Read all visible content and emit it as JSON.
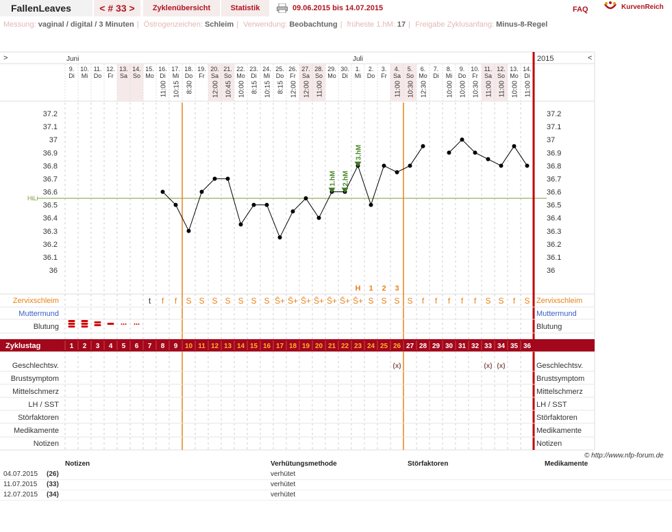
{
  "header": {
    "username": "FallenLeaves",
    "cycle_nav": "< # 33 >",
    "tabs": [
      "Zyklenübersicht",
      "Statistik"
    ],
    "date_range": "09.06.2015 bis 14.07.2015",
    "faq": "FAQ",
    "logo_text": "KurvenReich"
  },
  "info": [
    {
      "label": "Messung:",
      "value": "vaginal / digital / 3 Minuten"
    },
    {
      "label": "Östrogenzeichen:",
      "value": "Schleim"
    },
    {
      "label": "Verwendung:",
      "value": "Beobachtung"
    },
    {
      "label": "früheste 1.hM:",
      "value": "17"
    },
    {
      "label": "Freigabe Zyklusanfang:",
      "value": "Minus-8-Regel"
    }
  ],
  "chart_data": {
    "type": "line",
    "year": "2015",
    "nav_left": ">",
    "nav_right": "<",
    "months": [
      {
        "day_index": 0,
        "label": "Juni"
      },
      {
        "day_index": 22,
        "label": "Juli"
      }
    ],
    "dates": [
      "9.",
      "10.",
      "11.",
      "12.",
      "13.",
      "14.",
      "15.",
      "16.",
      "17.",
      "18.",
      "19.",
      "20.",
      "21.",
      "22.",
      "23.",
      "24.",
      "25.",
      "26.",
      "27.",
      "28.",
      "29.",
      "30.",
      "1.",
      "2.",
      "3.",
      "4.",
      "5.",
      "6.",
      "7.",
      "8.",
      "9.",
      "10.",
      "11.",
      "12.",
      "13.",
      "14."
    ],
    "weekdays": [
      "Di",
      "Mi",
      "Do",
      "Fr",
      "Sa",
      "So",
      "Mo",
      "Di",
      "Mi",
      "Do",
      "Fr",
      "Sa",
      "So",
      "Mo",
      "Di",
      "Mi",
      "Do",
      "Fr",
      "Sa",
      "So",
      "Mo",
      "Di",
      "Mi",
      "Do",
      "Fr",
      "Sa",
      "So",
      "Mo",
      "Di",
      "Mi",
      "Do",
      "Fr",
      "Sa",
      "So",
      "Mo",
      "Di"
    ],
    "weekend_days": [
      4,
      5,
      11,
      12,
      18,
      19,
      25,
      26,
      32,
      33
    ],
    "times": [
      "",
      "",
      "",
      "",
      "",
      "",
      "",
      "11:00",
      "10:15",
      "8:30",
      "",
      "12:00",
      "10:45",
      "10:00",
      "8:15",
      "10:15",
      "8:15",
      "12:00",
      "12:00",
      "11:00",
      "",
      "",
      "",
      "",
      "",
      "11:00",
      "10:30",
      "12:30",
      "",
      "10:00",
      "10:00",
      "10:30",
      "11:00",
      "11:00",
      "10:00",
      "11:00"
    ],
    "cycle_days": [
      "1",
      "2",
      "3",
      "4",
      "5",
      "6",
      "7",
      "8",
      "9",
      "10",
      "11",
      "12",
      "13",
      "14",
      "15",
      "16",
      "17",
      "18",
      "19",
      "20",
      "21",
      "22",
      "23",
      "24",
      "25",
      "26",
      "27",
      "28",
      "29",
      "30",
      "31",
      "32",
      "33",
      "34",
      "35",
      "36"
    ],
    "temperatures": [
      null,
      null,
      null,
      null,
      null,
      null,
      null,
      36.6,
      36.5,
      36.3,
      36.6,
      36.7,
      36.7,
      36.35,
      36.5,
      36.5,
      36.25,
      36.45,
      36.55,
      36.4,
      36.6,
      36.6,
      36.8,
      36.5,
      36.8,
      36.75,
      36.8,
      36.95,
      null,
      36.9,
      37.0,
      36.9,
      36.85,
      36.8,
      36.95,
      36.8
    ],
    "y_ticks": [
      36,
      36.1,
      36.2,
      36.3,
      36.4,
      36.5,
      36.6,
      36.7,
      36.8,
      36.9,
      37,
      37.1,
      37.2
    ],
    "ylim": [
      35.9,
      37.25
    ],
    "hilo": {
      "label": "HiLi",
      "value": 36.55
    },
    "high_markers": [
      {
        "day_index": 20,
        "label": "1.hM"
      },
      {
        "day_index": 21,
        "label": "2.hM"
      },
      {
        "day_index": 22,
        "label": "3.hM"
      }
    ],
    "peak_counters": [
      {
        "day_index": 22,
        "label": "H"
      },
      {
        "day_index": 23,
        "label": "1"
      },
      {
        "day_index": 24,
        "label": "2"
      },
      {
        "day_index": 25,
        "label": "3"
      }
    ],
    "vertical_lines": [
      8.5,
      25.5
    ],
    "cycle_end_day": 36,
    "rows": {
      "zervixschleim": {
        "label": "Zervixschleim",
        "values": [
          "",
          "",
          "",
          "",
          "",
          "",
          "t",
          "f",
          "f",
          "S",
          "S",
          "S",
          "S",
          "S",
          "S",
          "S",
          "S̄+",
          "S̄+",
          "S̄+",
          "S̄+",
          "S̄+",
          "S̄+",
          "S̄+",
          "S",
          "S",
          "S",
          "S",
          "f",
          "f",
          "f",
          "f",
          "f",
          "S",
          "S",
          "f",
          "S"
        ]
      },
      "muttermund": {
        "label": "Muttermund"
      },
      "blutung": {
        "label": "Blutung",
        "levels": [
          3,
          3,
          2,
          1,
          0.5,
          0.5,
          0,
          0,
          0,
          0,
          0,
          0,
          0,
          0,
          0,
          0,
          0,
          0,
          0,
          0,
          0,
          0,
          0,
          0,
          0,
          0,
          0,
          0,
          0,
          0,
          0,
          0,
          0,
          0,
          0,
          0
        ]
      },
      "zyklustag": {
        "label": "Zyklustag"
      },
      "geschlechtsv": {
        "label": "Geschlechtsv.",
        "marks": [
          {
            "day_index": 25,
            "text": "(x)"
          },
          {
            "day_index": 32,
            "text": "(x)"
          },
          {
            "day_index": 33,
            "text": "(x)"
          }
        ]
      },
      "brustsymptom": {
        "label": "Brustsymptom"
      },
      "mittelschmerz": {
        "label": "Mittelschmerz"
      },
      "lhsst": {
        "label": "LH / SST"
      },
      "stoerfaktoren": {
        "label": "Störfaktoren"
      },
      "medikamente": {
        "label": "Medikamente"
      },
      "notizen": {
        "label": "Notizen"
      }
    },
    "right_labels": [
      "Zervixschleim",
      "Muttermund",
      "Blutung",
      "Geschlechtsv.",
      "Brustsymptom",
      "Mittelschmerz",
      "LH / SST",
      "Störfaktoren",
      "Medikamente",
      "Notizen"
    ]
  },
  "copyright": "© http://www.nfp-forum.de",
  "notes_table": {
    "headers": [
      "Notizen",
      "Verhütungsmethode",
      "Störfaktoren",
      "Medikamente"
    ],
    "rows": [
      {
        "date": "04.07.2015",
        "day": "(26)",
        "method": "verhütet"
      },
      {
        "date": "11.07.2015",
        "day": "(33)",
        "method": "verhütet"
      },
      {
        "date": "12.07.2015",
        "day": "(34)",
        "method": "verhütet"
      }
    ]
  }
}
